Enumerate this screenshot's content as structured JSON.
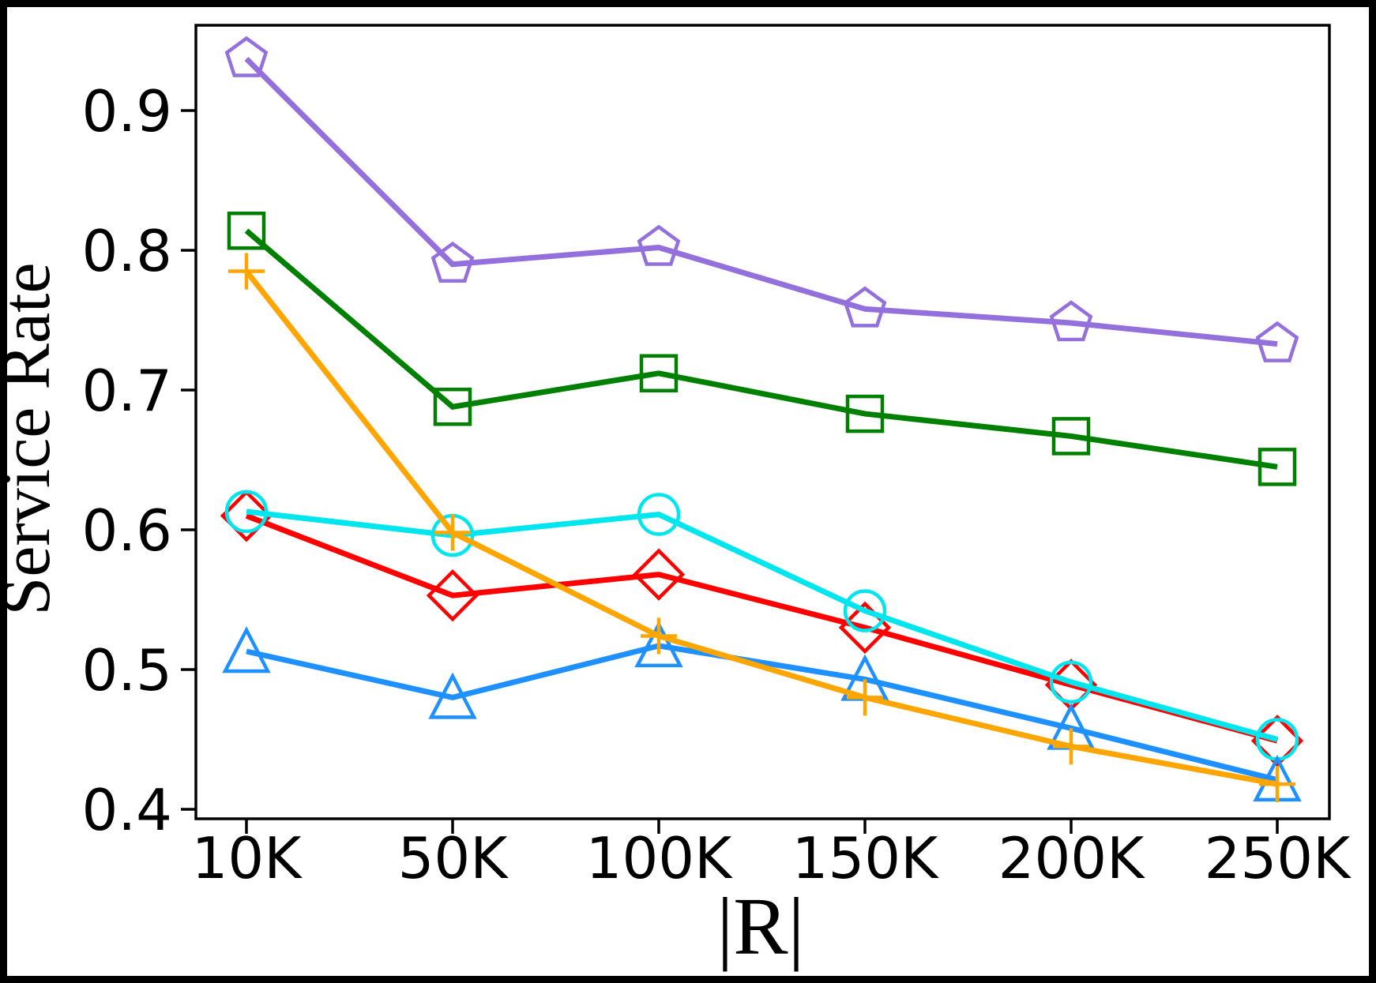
{
  "chart_data": {
    "type": "line",
    "title": "",
    "xlabel": "|R|",
    "ylabel": "Service Rate",
    "categories": [
      "10K",
      "50K",
      "100K",
      "150K",
      "200K",
      "250K"
    ],
    "x_tick_labels": [
      "10K",
      "50K",
      "100K",
      "150K",
      "200K",
      "250K"
    ],
    "y_tick_labels": [
      "0.4",
      "0.5",
      "0.6",
      "0.7",
      "0.8",
      "0.9"
    ],
    "y_tick_values": [
      0.4,
      0.5,
      0.6,
      0.7,
      0.8,
      0.9
    ],
    "ylim": [
      0.393,
      0.961
    ],
    "grid": false,
    "legend_position": "none",
    "series": [
      {
        "name": "purple-pentagon",
        "marker": "pentagon",
        "color": "#9370DB",
        "values": [
          0.937,
          0.79,
          0.802,
          0.758,
          0.748,
          0.733
        ]
      },
      {
        "name": "green-square",
        "marker": "square",
        "color": "#008000",
        "values": [
          0.814,
          0.688,
          0.712,
          0.683,
          0.667,
          0.645
        ]
      },
      {
        "name": "red-diamond",
        "marker": "diamond",
        "color": "#FF0000",
        "values": [
          0.61,
          0.553,
          0.568,
          0.53,
          0.489,
          0.449
        ]
      },
      {
        "name": "cyan-circle",
        "marker": "circle",
        "color": "#00E6EE",
        "values": [
          0.613,
          0.596,
          0.611,
          0.542,
          0.491,
          0.45
        ]
      },
      {
        "name": "blue-triangle",
        "marker": "triangle-up",
        "color": "#1E90FF",
        "values": [
          0.513,
          0.48,
          0.517,
          0.493,
          0.458,
          0.421
        ]
      },
      {
        "name": "orange-plus",
        "marker": "plus",
        "color": "#FFA500",
        "values": [
          0.785,
          0.598,
          0.524,
          0.48,
          0.445,
          0.418
        ]
      }
    ],
    "frame_color": "#000000"
  }
}
